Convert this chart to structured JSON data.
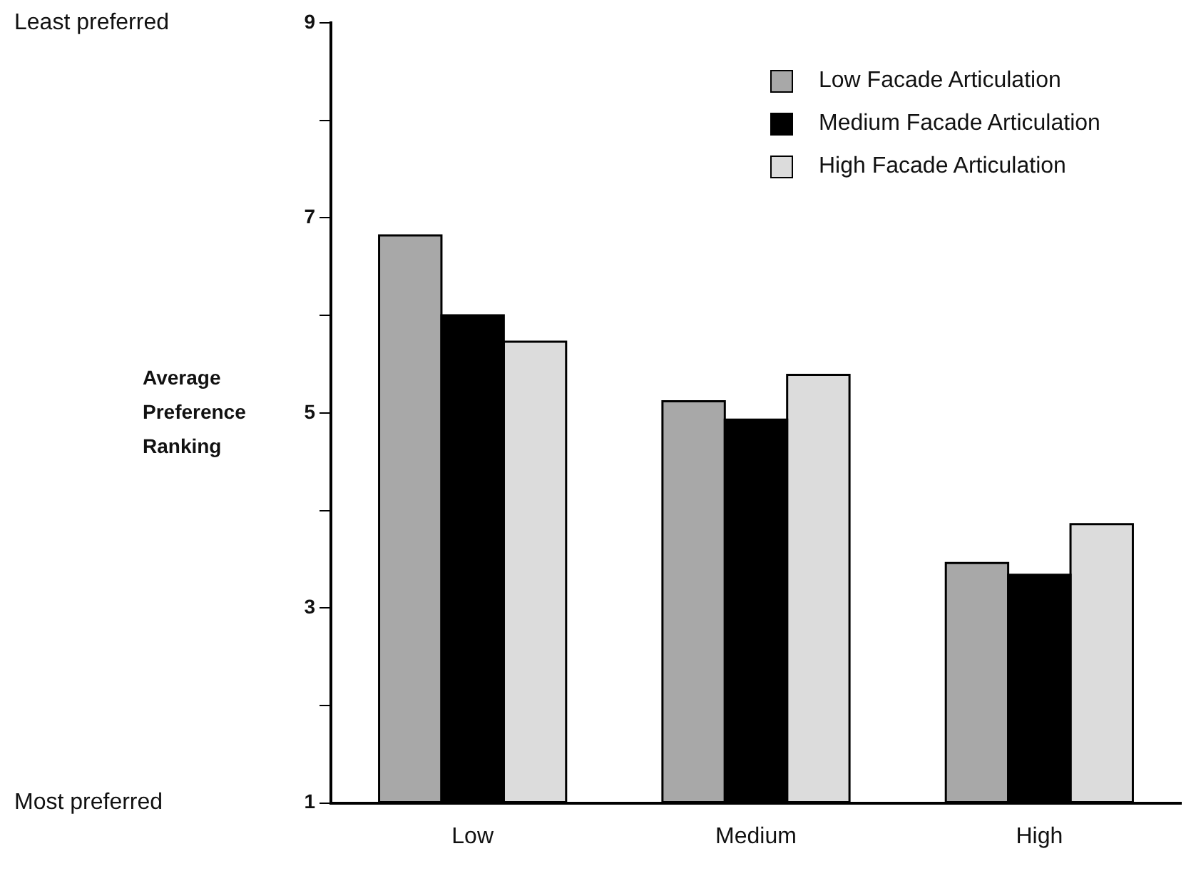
{
  "chart_data": {
    "type": "bar",
    "ylabel": "Average Preference Ranking",
    "categories": [
      "Low",
      "Medium",
      "High"
    ],
    "series": [
      {
        "name": "Low Facade Articulation",
        "color": "#a8a8a8",
        "values": [
          6.82,
          5.12,
          3.46
        ]
      },
      {
        "name": "Medium Facade Articulation",
        "color": "#000000",
        "values": [
          6.0,
          4.93,
          3.34
        ]
      },
      {
        "name": "High Facade Articulation",
        "color": "#dcdcdc",
        "values": [
          5.73,
          5.39,
          3.86
        ]
      }
    ],
    "ylim": [
      1,
      9
    ],
    "yticks": [
      1,
      {
        "value": 2,
        "label": null
      },
      3,
      {
        "value": 4,
        "label": null
      },
      5,
      {
        "value": 6,
        "label": null
      },
      7,
      {
        "value": 8,
        "label": null
      },
      9
    ],
    "annotations": [
      "Least preferred",
      "Most preferred"
    ],
    "grid": false,
    "legend": "top right"
  }
}
